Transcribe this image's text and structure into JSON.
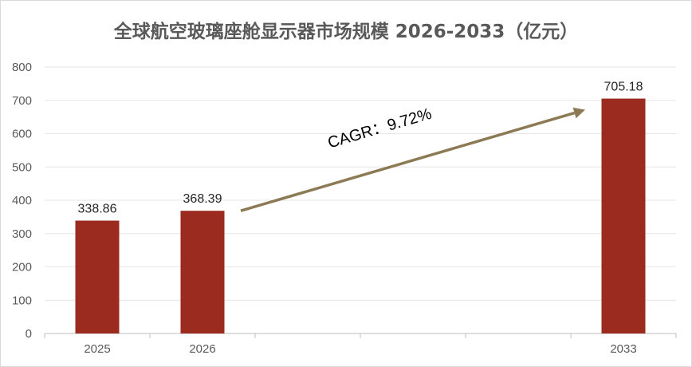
{
  "chart_data": {
    "type": "bar",
    "title": "全球航空玻璃座舱显示器市场规模 2026-2033（亿元）",
    "x_slots": [
      "2025",
      "2026",
      "",
      "",
      "",
      "2033"
    ],
    "categories": [
      "2025",
      "2026",
      "2033"
    ],
    "values": [
      338.86,
      368.39,
      705.18
    ],
    "data_labels": [
      "338.86",
      "368.39",
      "705.18"
    ],
    "ylim": [
      0,
      800
    ],
    "yticks": [
      0,
      100,
      200,
      300,
      400,
      500,
      600,
      700,
      800
    ],
    "grid": true,
    "legend": "none",
    "annotation": {
      "text": "CAGR：9.72%",
      "from_category": "2026",
      "to_category": "2033"
    },
    "colors": {
      "bar": "#9b2a1f",
      "arrow": "#8c7a55",
      "grid": "#e6e6e6",
      "axis": "#bfbfbf"
    }
  }
}
